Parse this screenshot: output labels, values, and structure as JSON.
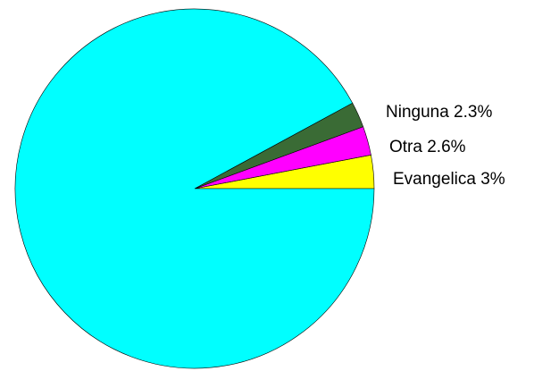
{
  "chart_data": {
    "type": "pie",
    "start_angle_deg": 0,
    "direction": "counterclockwise",
    "slices": [
      {
        "label": "Evangelica",
        "value_text": "3%",
        "value": 3.0,
        "color": "#ffff00"
      },
      {
        "label": "Otra",
        "value_text": "2.6%",
        "value": 2.6,
        "color": "#ff00ff"
      },
      {
        "label": "Ninguna",
        "value_text": "2.3%",
        "value": 2.3,
        "color": "#3a6b35"
      },
      {
        "label": "",
        "value_text": "",
        "value": 92.1,
        "color": "#00ffff"
      }
    ]
  }
}
